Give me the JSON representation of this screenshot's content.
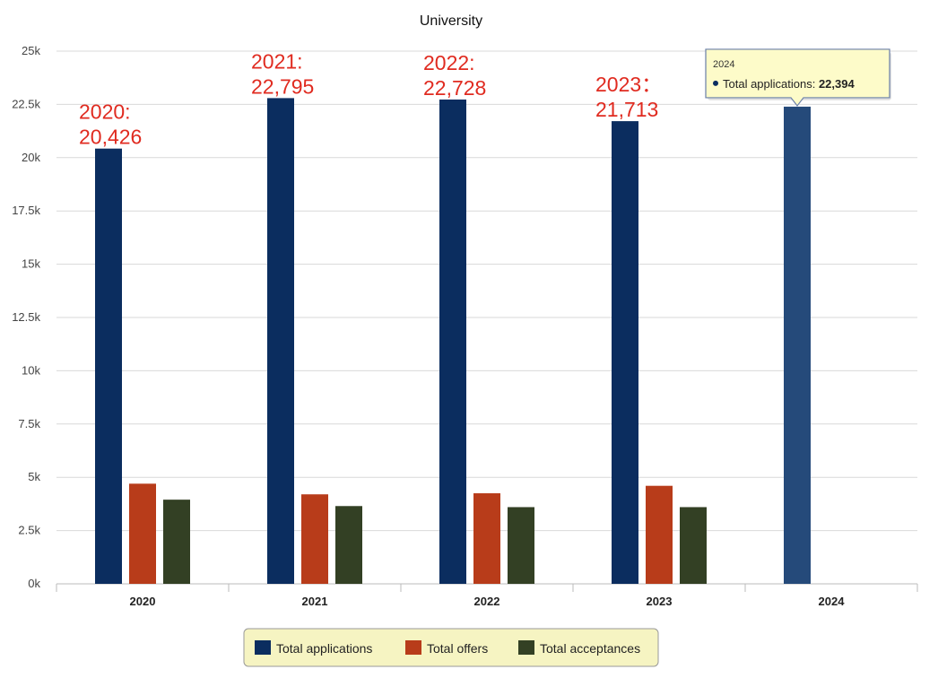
{
  "chart_data": {
    "type": "bar",
    "title": "University",
    "categories": [
      "2020",
      "2021",
      "2022",
      "2023",
      "2024"
    ],
    "series": [
      {
        "name": "Total applications",
        "color": "#0b2d5f",
        "values": [
          20426,
          22795,
          22728,
          21713,
          22394
        ]
      },
      {
        "name": "Total offers",
        "color": "#b83c1a",
        "values": [
          4700,
          4200,
          4250,
          4600,
          null
        ]
      },
      {
        "name": "Total acceptances",
        "color": "#334024",
        "values": [
          3950,
          3650,
          3600,
          3600,
          null
        ]
      }
    ],
    "ylim": [
      0,
      25000
    ],
    "yticks": [
      "0k",
      "2.5k",
      "5k",
      "7.5k",
      "10k",
      "12.5k",
      "15k",
      "17.5k",
      "20k",
      "22.5k",
      "25k"
    ],
    "grid": true,
    "legend_position": "bottom",
    "highlight_color": "#254a7a",
    "annotations": [
      {
        "category": "2020",
        "line1": "2020:",
        "line2": "20,426"
      },
      {
        "category": "2021",
        "line1": "2021:",
        "line2": "22,795"
      },
      {
        "category": "2022",
        "line1": "2022:",
        "line2": "22,728"
      },
      {
        "category": "2023",
        "line1": "2023：",
        "line2": "21,713"
      }
    ],
    "tooltip": {
      "category": "2024",
      "title": "2024",
      "label": "Total applications: ",
      "value": "22,394"
    }
  }
}
